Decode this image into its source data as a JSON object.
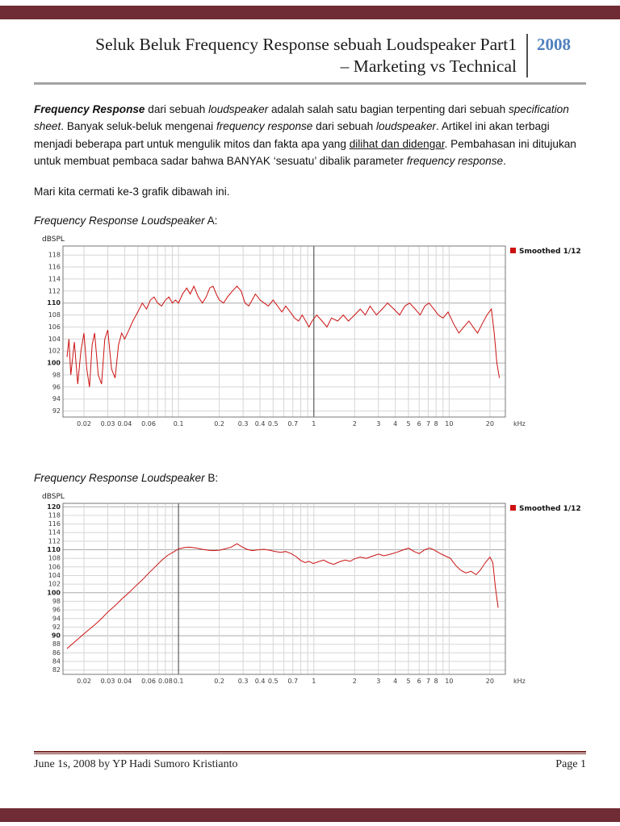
{
  "colors": {
    "accent": "#702c34",
    "footer_rule": "#7a2c2c",
    "year": "#4f81bd",
    "chart_line": "#cc1111"
  },
  "header": {
    "title_line1": "Seluk Beluk Frequency Response sebuah Loudspeaker Part1",
    "title_line2": "– Marketing vs Technical",
    "year": "2008"
  },
  "body": {
    "paragraph1": [
      {
        "t": "Frequency Response",
        "b": true,
        "i": true
      },
      {
        "t": " dari sebuah "
      },
      {
        "t": "loudspeaker",
        "i": true
      },
      {
        "t": " adalah salah satu bagian terpenting dari sebuah "
      },
      {
        "t": "specification sheet",
        "i": true
      },
      {
        "t": ". Banyak seluk-beluk mengenai "
      },
      {
        "t": "frequency response",
        "i": true
      },
      {
        "t": " dari sebuah "
      },
      {
        "t": "loudspeaker",
        "i": true
      },
      {
        "t": ". Artikel ini akan terbagi menjadi beberapa part untuk mengulik mitos dan fakta apa yang "
      },
      {
        "t": "dilihat dan didengar",
        "u": true
      },
      {
        "t": ". Pembahasan ini ditujukan untuk membuat pembaca sadar bahwa BANYAK ‘sesuatu’ dibalik parameter "
      },
      {
        "t": "frequency response",
        "i": true
      },
      {
        "t": "."
      }
    ],
    "paragraph2": "Mari kita cermati ke-3 grafik dibawah ini.",
    "chart_a_label": [
      {
        "t": "Frequency Response Loudspeaker",
        "i": true
      },
      {
        "t": " A:"
      }
    ],
    "chart_b_label": [
      {
        "t": "Frequency Response Loudspeaker",
        "i": true
      },
      {
        "t": " B:"
      }
    ]
  },
  "footer": {
    "left": "June 1s, 2008 by YP Hadi Sumoro Kristianto",
    "right": "Page 1"
  },
  "chart_data": [
    {
      "type": "line",
      "title": "Frequency Response Loudspeaker A",
      "ylabel": "dBSPL",
      "x_unit": "kHz",
      "legend": "Smoothed 1/12",
      "xscale": "log",
      "grid": true,
      "xlim": [
        0.014,
        26
      ],
      "ylim": [
        91,
        119.5
      ],
      "yticks": [
        92,
        94,
        96,
        98,
        100,
        102,
        104,
        106,
        108,
        110,
        112,
        114,
        116,
        118
      ],
      "xticks": [
        0.02,
        0.03,
        0.04,
        0.06,
        0.1,
        0.2,
        0.3,
        0.4,
        0.5,
        0.7,
        1,
        2,
        3,
        4,
        5,
        6,
        7,
        8,
        10,
        20
      ],
      "highlight_x": 1,
      "points": [
        [
          0.015,
          101
        ],
        [
          0.0155,
          104
        ],
        [
          0.016,
          98
        ],
        [
          0.017,
          103.5
        ],
        [
          0.018,
          96.5
        ],
        [
          0.019,
          102
        ],
        [
          0.02,
          105
        ],
        [
          0.021,
          99
        ],
        [
          0.022,
          96
        ],
        [
          0.023,
          103
        ],
        [
          0.024,
          105
        ],
        [
          0.0255,
          98
        ],
        [
          0.027,
          96.5
        ],
        [
          0.0285,
          104
        ],
        [
          0.03,
          105.5
        ],
        [
          0.032,
          99
        ],
        [
          0.034,
          97.5
        ],
        [
          0.036,
          103
        ],
        [
          0.038,
          105
        ],
        [
          0.04,
          104
        ],
        [
          0.043,
          105.5
        ],
        [
          0.046,
          107
        ],
        [
          0.05,
          108.5
        ],
        [
          0.054,
          110
        ],
        [
          0.058,
          109
        ],
        [
          0.062,
          110.5
        ],
        [
          0.066,
          111
        ],
        [
          0.07,
          110
        ],
        [
          0.075,
          109.5
        ],
        [
          0.08,
          110.5
        ],
        [
          0.085,
          111
        ],
        [
          0.09,
          110
        ],
        [
          0.095,
          110.5
        ],
        [
          0.1,
          110
        ],
        [
          0.107,
          111.5
        ],
        [
          0.115,
          112.5
        ],
        [
          0.122,
          111.5
        ],
        [
          0.13,
          112.8
        ],
        [
          0.14,
          111
        ],
        [
          0.15,
          110
        ],
        [
          0.16,
          111
        ],
        [
          0.17,
          112.5
        ],
        [
          0.18,
          112.8
        ],
        [
          0.19,
          111.5
        ],
        [
          0.2,
          110.5
        ],
        [
          0.215,
          110
        ],
        [
          0.23,
          111
        ],
        [
          0.25,
          112
        ],
        [
          0.27,
          112.8
        ],
        [
          0.29,
          112
        ],
        [
          0.31,
          110
        ],
        [
          0.33,
          109.5
        ],
        [
          0.35,
          110.5
        ],
        [
          0.37,
          111.5
        ],
        [
          0.4,
          110.5
        ],
        [
          0.43,
          110
        ],
        [
          0.46,
          109.5
        ],
        [
          0.5,
          110.5
        ],
        [
          0.54,
          109.5
        ],
        [
          0.58,
          108.5
        ],
        [
          0.62,
          109.5
        ],
        [
          0.67,
          108.5
        ],
        [
          0.72,
          107.5
        ],
        [
          0.77,
          107
        ],
        [
          0.82,
          108
        ],
        [
          0.87,
          107
        ],
        [
          0.92,
          106
        ],
        [
          0.97,
          107
        ],
        [
          1.05,
          108
        ],
        [
          1.15,
          107
        ],
        [
          1.25,
          106
        ],
        [
          1.35,
          107.5
        ],
        [
          1.5,
          107
        ],
        [
          1.65,
          108
        ],
        [
          1.8,
          107
        ],
        [
          2,
          108
        ],
        [
          2.2,
          109
        ],
        [
          2.4,
          108
        ],
        [
          2.6,
          109.5
        ],
        [
          2.9,
          108
        ],
        [
          3.2,
          109
        ],
        [
          3.5,
          110
        ],
        [
          3.9,
          109
        ],
        [
          4.3,
          108
        ],
        [
          4.7,
          109.5
        ],
        [
          5.1,
          110
        ],
        [
          5.6,
          109
        ],
        [
          6.1,
          108
        ],
        [
          6.6,
          109.5
        ],
        [
          7.1,
          110
        ],
        [
          7.7,
          109
        ],
        [
          8.3,
          108
        ],
        [
          9,
          107.5
        ],
        [
          9.8,
          108.5
        ],
        [
          10.8,
          106.5
        ],
        [
          11.8,
          105
        ],
        [
          12.8,
          106
        ],
        [
          14,
          107
        ],
        [
          15,
          106
        ],
        [
          16.2,
          105
        ],
        [
          17.5,
          106.5
        ],
        [
          19,
          108
        ],
        [
          20.5,
          109
        ],
        [
          21.5,
          105
        ],
        [
          22.5,
          100
        ],
        [
          23.5,
          97.5
        ]
      ]
    },
    {
      "type": "line",
      "title": "Frequency Response Loudspeaker B",
      "ylabel": "dBSPL",
      "x_unit": "kHz",
      "legend": "Smoothed 1/12",
      "xscale": "log",
      "grid": true,
      "xlim": [
        0.014,
        26
      ],
      "ylim": [
        81,
        120.8
      ],
      "yticks": [
        82,
        84,
        86,
        88,
        90,
        92,
        94,
        96,
        98,
        100,
        102,
        104,
        106,
        108,
        110,
        112,
        114,
        116,
        118,
        120
      ],
      "xticks": [
        0.02,
        0.03,
        0.04,
        0.06,
        0.08,
        0.1,
        0.2,
        0.3,
        0.4,
        0.5,
        0.7,
        1,
        2,
        3,
        4,
        5,
        6,
        7,
        8,
        10,
        20
      ],
      "highlight_x": 0.1,
      "points": [
        [
          0.015,
          87
        ],
        [
          0.017,
          88.5
        ],
        [
          0.019,
          89.8
        ],
        [
          0.021,
          91
        ],
        [
          0.024,
          92.5
        ],
        [
          0.027,
          94
        ],
        [
          0.03,
          95.5
        ],
        [
          0.034,
          97
        ],
        [
          0.038,
          98.5
        ],
        [
          0.043,
          100
        ],
        [
          0.048,
          101.5
        ],
        [
          0.054,
          103
        ],
        [
          0.06,
          104.5
        ],
        [
          0.067,
          106
        ],
        [
          0.075,
          107.5
        ],
        [
          0.083,
          108.7
        ],
        [
          0.092,
          109.5
        ],
        [
          0.1,
          110.2
        ],
        [
          0.11,
          110.5
        ],
        [
          0.12,
          110.6
        ],
        [
          0.135,
          110.4
        ],
        [
          0.15,
          110.1
        ],
        [
          0.165,
          109.9
        ],
        [
          0.18,
          109.8
        ],
        [
          0.2,
          109.9
        ],
        [
          0.22,
          110.2
        ],
        [
          0.245,
          110.6
        ],
        [
          0.27,
          111.4
        ],
        [
          0.29,
          110.8
        ],
        [
          0.32,
          110.1
        ],
        [
          0.35,
          109.8
        ],
        [
          0.39,
          110
        ],
        [
          0.43,
          110.1
        ],
        [
          0.47,
          109.9
        ],
        [
          0.52,
          109.6
        ],
        [
          0.57,
          109.4
        ],
        [
          0.62,
          109.6
        ],
        [
          0.68,
          109.1
        ],
        [
          0.74,
          108.4
        ],
        [
          0.8,
          107.5
        ],
        [
          0.86,
          107
        ],
        [
          0.92,
          107.3
        ],
        [
          0.99,
          106.8
        ],
        [
          1.08,
          107.2
        ],
        [
          1.18,
          107.6
        ],
        [
          1.28,
          107
        ],
        [
          1.4,
          106.6
        ],
        [
          1.55,
          107.2
        ],
        [
          1.7,
          107.6
        ],
        [
          1.85,
          107.3
        ],
        [
          2,
          107.9
        ],
        [
          2.2,
          108.3
        ],
        [
          2.45,
          108
        ],
        [
          2.7,
          108.5
        ],
        [
          3,
          109
        ],
        [
          3.3,
          108.6
        ],
        [
          3.7,
          109
        ],
        [
          4.1,
          109.4
        ],
        [
          4.5,
          109.9
        ],
        [
          5,
          110.4
        ],
        [
          5.5,
          109.6
        ],
        [
          6,
          109.1
        ],
        [
          6.6,
          110
        ],
        [
          7.2,
          110.4
        ],
        [
          7.8,
          109.9
        ],
        [
          8.5,
          109.2
        ],
        [
          9.3,
          108.6
        ],
        [
          10.2,
          108
        ],
        [
          11.2,
          106.3
        ],
        [
          12.2,
          105.2
        ],
        [
          13.3,
          104.6
        ],
        [
          14.5,
          105
        ],
        [
          15.8,
          104.2
        ],
        [
          17,
          105.3
        ],
        [
          18.5,
          107
        ],
        [
          20,
          108.3
        ],
        [
          21,
          107
        ],
        [
          22,
          101
        ],
        [
          23,
          96.5
        ]
      ]
    }
  ]
}
